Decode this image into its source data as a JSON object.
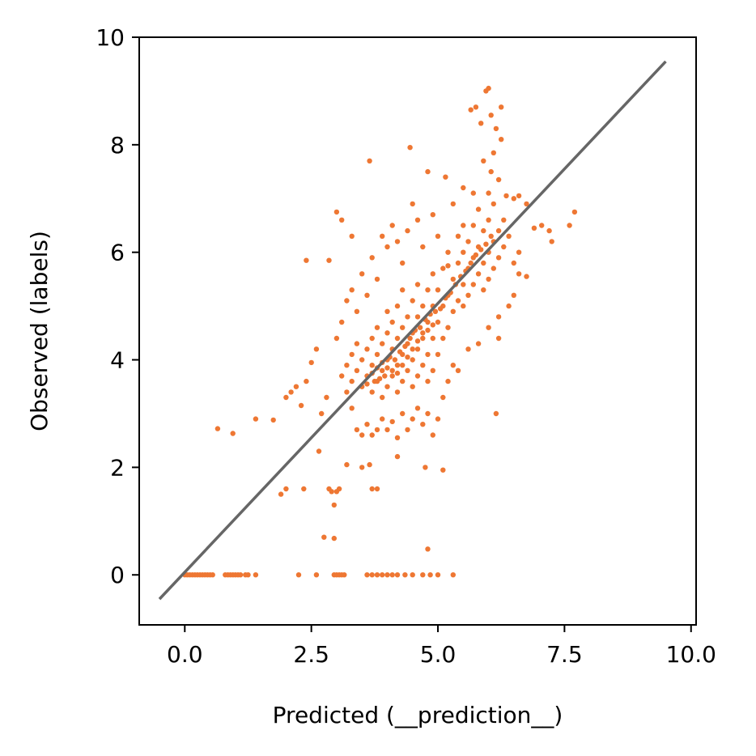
{
  "chart_data": {
    "type": "scatter",
    "xlabel": "Predicted (__prediction__)",
    "ylabel": "Observed (labels)",
    "xlim": [
      -0.9,
      10.1
    ],
    "ylim": [
      -0.93,
      10.0
    ],
    "x_ticks": [
      0.0,
      2.5,
      5.0,
      7.5,
      10.0
    ],
    "x_tick_labels": [
      "0.0",
      "2.5",
      "5.0",
      "7.5",
      "10.0"
    ],
    "y_ticks": [
      0,
      2,
      4,
      6,
      8,
      10
    ],
    "y_tick_labels": [
      "0",
      "2",
      "4",
      "6",
      "8",
      "10"
    ],
    "grid": false,
    "legend": "none",
    "point_color": "#ee7733",
    "reference_line": {
      "x": [
        -0.5,
        9.5
      ],
      "y": [
        -0.45,
        9.55
      ],
      "color": "#666666"
    },
    "series": [
      {
        "points": [
          [
            0.0,
            0
          ],
          [
            0.05,
            0
          ],
          [
            0.1,
            0
          ],
          [
            0.15,
            0
          ],
          [
            0.2,
            0
          ],
          [
            0.25,
            0
          ],
          [
            0.3,
            0
          ],
          [
            0.35,
            0
          ],
          [
            0.4,
            0
          ],
          [
            0.45,
            0
          ],
          [
            0.5,
            0
          ],
          [
            0.55,
            0
          ],
          [
            0.8,
            0
          ],
          [
            0.85,
            0
          ],
          [
            0.9,
            0
          ],
          [
            0.95,
            0
          ],
          [
            1.0,
            0
          ],
          [
            1.05,
            0
          ],
          [
            1.1,
            0
          ],
          [
            1.2,
            0
          ],
          [
            1.25,
            0
          ],
          [
            1.4,
            0
          ],
          [
            2.25,
            0
          ],
          [
            2.6,
            0
          ],
          [
            2.95,
            0
          ],
          [
            3.0,
            0
          ],
          [
            3.05,
            0
          ],
          [
            3.1,
            0
          ],
          [
            3.15,
            0
          ],
          [
            3.6,
            0
          ],
          [
            3.7,
            0
          ],
          [
            3.8,
            0
          ],
          [
            3.9,
            0
          ],
          [
            4.0,
            0
          ],
          [
            4.1,
            0
          ],
          [
            4.2,
            0
          ],
          [
            4.35,
            0
          ],
          [
            4.5,
            0
          ],
          [
            4.7,
            0
          ],
          [
            4.85,
            0
          ],
          [
            5.0,
            0
          ],
          [
            5.3,
            0
          ],
          [
            0.65,
            2.72
          ],
          [
            0.95,
            2.63
          ],
          [
            1.4,
            2.9
          ],
          [
            1.75,
            2.88
          ],
          [
            1.9,
            1.5
          ],
          [
            2.0,
            1.6
          ],
          [
            2.35,
            1.6
          ],
          [
            2.65,
            2.3
          ],
          [
            2.85,
            1.6
          ],
          [
            2.9,
            1.55
          ],
          [
            3.0,
            1.55
          ],
          [
            3.05,
            1.6
          ],
          [
            2.95,
            1.3
          ],
          [
            3.7,
            1.6
          ],
          [
            3.8,
            1.6
          ],
          [
            3.2,
            2.05
          ],
          [
            3.5,
            2.0
          ],
          [
            3.65,
            2.05
          ],
          [
            4.2,
            2.2
          ],
          [
            4.75,
            2.0
          ],
          [
            5.1,
            1.95
          ],
          [
            2.75,
            0.7
          ],
          [
            2.95,
            0.68
          ],
          [
            4.8,
            0.48
          ],
          [
            2.4,
            5.85
          ],
          [
            2.85,
            5.85
          ],
          [
            2.0,
            3.3
          ],
          [
            2.1,
            3.4
          ],
          [
            2.2,
            3.5
          ],
          [
            2.3,
            3.15
          ],
          [
            2.4,
            3.6
          ],
          [
            2.5,
            3.95
          ],
          [
            2.6,
            4.2
          ],
          [
            2.7,
            3.0
          ],
          [
            2.8,
            3.3
          ],
          [
            3.0,
            6.75
          ],
          [
            3.1,
            6.6
          ],
          [
            3.3,
            6.3
          ],
          [
            3.65,
            7.7
          ],
          [
            4.45,
            7.95
          ],
          [
            4.5,
            6.9
          ],
          [
            4.8,
            7.5
          ],
          [
            5.15,
            7.4
          ],
          [
            5.2,
            5.75
          ],
          [
            5.5,
            7.2
          ],
          [
            5.65,
            8.65
          ],
          [
            5.75,
            8.7
          ],
          [
            5.85,
            8.4
          ],
          [
            5.95,
            9.0
          ],
          [
            6.0,
            9.05
          ],
          [
            6.05,
            8.55
          ],
          [
            6.15,
            8.3
          ],
          [
            6.25,
            8.7
          ],
          [
            6.25,
            8.1
          ],
          [
            6.1,
            7.85
          ],
          [
            5.9,
            7.7
          ],
          [
            6.05,
            7.5
          ],
          [
            6.2,
            7.35
          ],
          [
            6.35,
            7.05
          ],
          [
            6.5,
            7.0
          ],
          [
            6.6,
            7.05
          ],
          [
            6.75,
            6.9
          ],
          [
            6.9,
            6.45
          ],
          [
            7.05,
            6.5
          ],
          [
            7.2,
            6.4
          ],
          [
            7.25,
            6.2
          ],
          [
            7.6,
            6.5
          ],
          [
            7.7,
            6.75
          ],
          [
            6.6,
            5.6
          ],
          [
            6.75,
            5.55
          ],
          [
            6.2,
            4.4
          ],
          [
            6.15,
            3.0
          ],
          [
            3.2,
            5.1
          ],
          [
            3.3,
            5.3
          ],
          [
            3.4,
            4.9
          ],
          [
            3.5,
            5.6
          ],
          [
            3.6,
            5.2
          ],
          [
            3.7,
            5.9
          ],
          [
            3.8,
            5.5
          ],
          [
            3.9,
            6.3
          ],
          [
            4.0,
            6.1
          ],
          [
            4.1,
            6.5
          ],
          [
            4.2,
            6.2
          ],
          [
            4.3,
            5.8
          ],
          [
            4.4,
            6.4
          ],
          [
            4.6,
            6.6
          ],
          [
            4.7,
            6.1
          ],
          [
            4.9,
            6.7
          ],
          [
            5.0,
            6.3
          ],
          [
            5.3,
            6.9
          ],
          [
            5.5,
            6.5
          ],
          [
            5.7,
            7.1
          ],
          [
            5.8,
            6.8
          ],
          [
            6.0,
            7.1
          ],
          [
            6.1,
            6.9
          ],
          [
            6.3,
            6.6
          ],
          [
            3.0,
            4.4
          ],
          [
            3.1,
            4.7
          ],
          [
            3.2,
            3.4
          ],
          [
            3.3,
            3.1
          ],
          [
            3.4,
            2.7
          ],
          [
            3.5,
            2.6
          ],
          [
            3.6,
            2.8
          ],
          [
            3.7,
            2.6
          ],
          [
            3.8,
            2.7
          ],
          [
            3.9,
            2.9
          ],
          [
            4.0,
            2.7
          ],
          [
            4.1,
            2.85
          ],
          [
            4.2,
            2.55
          ],
          [
            4.3,
            3.0
          ],
          [
            4.4,
            2.7
          ],
          [
            4.5,
            2.9
          ],
          [
            4.6,
            3.1
          ],
          [
            4.7,
            2.8
          ],
          [
            4.8,
            3.0
          ],
          [
            4.9,
            2.6
          ],
          [
            5.0,
            2.9
          ],
          [
            5.1,
            3.3
          ],
          [
            5.2,
            3.6
          ],
          [
            5.3,
            3.9
          ],
          [
            5.4,
            3.8
          ],
          [
            5.6,
            4.2
          ],
          [
            5.8,
            4.3
          ],
          [
            6.0,
            4.6
          ],
          [
            6.2,
            4.8
          ],
          [
            6.4,
            5.0
          ],
          [
            6.5,
            5.2
          ],
          [
            3.1,
            3.7
          ],
          [
            3.2,
            3.9
          ],
          [
            3.3,
            3.6
          ],
          [
            3.3,
            4.1
          ],
          [
            3.4,
            3.8
          ],
          [
            3.4,
            4.3
          ],
          [
            3.5,
            3.5
          ],
          [
            3.5,
            4.0
          ],
          [
            3.6,
            3.7
          ],
          [
            3.6,
            4.2
          ],
          [
            3.7,
            3.4
          ],
          [
            3.7,
            3.9
          ],
          [
            3.7,
            4.4
          ],
          [
            3.8,
            3.6
          ],
          [
            3.8,
            4.1
          ],
          [
            3.8,
            4.6
          ],
          [
            3.9,
            3.3
          ],
          [
            3.9,
            3.8
          ],
          [
            3.9,
            4.3
          ],
          [
            4.0,
            3.5
          ],
          [
            4.0,
            4.0
          ],
          [
            4.0,
            4.5
          ],
          [
            4.0,
            4.9
          ],
          [
            4.1,
            3.7
          ],
          [
            4.1,
            4.2
          ],
          [
            4.1,
            4.7
          ],
          [
            4.2,
            3.4
          ],
          [
            4.2,
            3.9
          ],
          [
            4.2,
            4.4
          ],
          [
            4.2,
            5.0
          ],
          [
            4.3,
            3.6
          ],
          [
            4.3,
            4.1
          ],
          [
            4.3,
            4.6
          ],
          [
            4.3,
            5.3
          ],
          [
            4.4,
            3.8
          ],
          [
            4.4,
            4.3
          ],
          [
            4.4,
            4.8
          ],
          [
            4.5,
            3.5
          ],
          [
            4.5,
            4.0
          ],
          [
            4.5,
            4.5
          ],
          [
            4.5,
            5.1
          ],
          [
            4.6,
            3.7
          ],
          [
            4.6,
            4.2
          ],
          [
            4.6,
            4.8
          ],
          [
            4.6,
            5.4
          ],
          [
            4.7,
            3.9
          ],
          [
            4.7,
            4.4
          ],
          [
            4.7,
            5.0
          ],
          [
            4.8,
            3.6
          ],
          [
            4.8,
            4.1
          ],
          [
            4.8,
            4.7
          ],
          [
            4.8,
            5.3
          ],
          [
            4.9,
            3.8
          ],
          [
            4.9,
            4.4
          ],
          [
            4.9,
            5.0
          ],
          [
            4.9,
            5.6
          ],
          [
            5.0,
            4.1
          ],
          [
            5.0,
            4.7
          ],
          [
            5.0,
            5.3
          ],
          [
            5.1,
            4.4
          ],
          [
            5.1,
            5.0
          ],
          [
            5.1,
            5.7
          ],
          [
            5.2,
            4.6
          ],
          [
            5.2,
            5.2
          ],
          [
            5.2,
            6.0
          ],
          [
            5.3,
            4.9
          ],
          [
            5.3,
            5.5
          ],
          [
            5.4,
            5.1
          ],
          [
            5.4,
            5.8
          ],
          [
            5.4,
            6.3
          ],
          [
            5.5,
            5.0
          ],
          [
            5.5,
            5.4
          ],
          [
            5.5,
            6.0
          ],
          [
            5.6,
            5.2
          ],
          [
            5.6,
            5.7
          ],
          [
            5.6,
            6.2
          ],
          [
            5.7,
            5.4
          ],
          [
            5.7,
            5.9
          ],
          [
            5.7,
            6.5
          ],
          [
            5.8,
            5.6
          ],
          [
            5.8,
            6.1
          ],
          [
            5.9,
            5.3
          ],
          [
            5.9,
            5.8
          ],
          [
            5.9,
            6.4
          ],
          [
            6.0,
            5.5
          ],
          [
            6.0,
            6.0
          ],
          [
            6.0,
            6.6
          ],
          [
            6.1,
            5.7
          ],
          [
            6.1,
            6.2
          ],
          [
            6.2,
            5.9
          ],
          [
            6.2,
            6.4
          ],
          [
            6.3,
            6.1
          ],
          [
            6.4,
            6.3
          ],
          [
            6.5,
            5.8
          ],
          [
            6.6,
            6.0
          ],
          [
            3.6,
            3.55
          ],
          [
            3.7,
            3.75
          ],
          [
            3.75,
            3.6
          ],
          [
            3.8,
            3.85
          ],
          [
            3.85,
            3.65
          ],
          [
            3.9,
            3.95
          ],
          [
            3.95,
            3.7
          ],
          [
            4.0,
            3.85
          ],
          [
            4.05,
            4.05
          ],
          [
            4.1,
            3.8
          ],
          [
            4.15,
            4.0
          ],
          [
            4.2,
            3.75
          ],
          [
            4.25,
            4.15
          ],
          [
            4.3,
            3.9
          ],
          [
            4.35,
            4.25
          ],
          [
            4.4,
            4.05
          ],
          [
            4.45,
            4.4
          ],
          [
            4.5,
            4.2
          ],
          [
            4.55,
            4.55
          ],
          [
            4.6,
            4.35
          ],
          [
            4.65,
            4.6
          ],
          [
            4.7,
            4.5
          ],
          [
            4.75,
            4.75
          ],
          [
            4.8,
            4.55
          ],
          [
            4.85,
            4.85
          ],
          [
            4.9,
            4.65
          ],
          [
            4.95,
            4.9
          ],
          [
            5.05,
            4.95
          ],
          [
            5.15,
            5.15
          ],
          [
            5.25,
            5.25
          ],
          [
            5.35,
            5.4
          ],
          [
            5.45,
            5.55
          ],
          [
            5.55,
            5.65
          ],
          [
            5.65,
            5.8
          ],
          [
            5.75,
            5.95
          ],
          [
            5.85,
            6.05
          ],
          [
            5.95,
            6.15
          ],
          [
            6.05,
            6.3
          ]
        ]
      }
    ]
  }
}
